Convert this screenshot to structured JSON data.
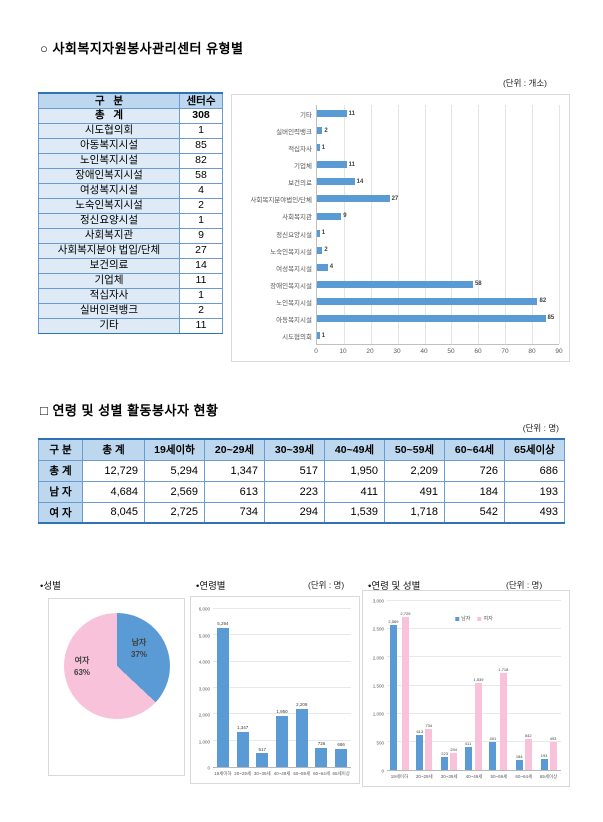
{
  "colors": {
    "accent_blue": "#5b9bd5",
    "pink": "#f8c3da",
    "table_header_bg": "#bdd7ee",
    "table_label_bg": "#deebf7",
    "table_border": "#2e74b5"
  },
  "section1": {
    "title": "○ 사회복지자원봉사관리센터 유형별",
    "unit": "(단위 : 개소)",
    "table": {
      "headers": [
        "구   분",
        "센터수"
      ],
      "rows": [
        [
          "총   계",
          "308"
        ],
        [
          "시도협의회",
          "1"
        ],
        [
          "아동복지시설",
          "85"
        ],
        [
          "노인복지시설",
          "82"
        ],
        [
          "장애인복지시설",
          "58"
        ],
        [
          "여성복지시설",
          "4"
        ],
        [
          "노숙인복지시설",
          "2"
        ],
        [
          "정신요양시설",
          "1"
        ],
        [
          "사회복지관",
          "9"
        ],
        [
          "사회복지분야 법입/단체",
          "27"
        ],
        [
          "보건의료",
          "14"
        ],
        [
          "기업체",
          "11"
        ],
        [
          "적십자사",
          "1"
        ],
        [
          "실버인력뱅크",
          "2"
        ],
        [
          "기타",
          "11"
        ]
      ]
    }
  },
  "section2": {
    "title": "□ 연령 및 성별 활동봉사자 현황",
    "unit": "(단위 : 명)",
    "table": {
      "headers": [
        "구 분",
        "총 계",
        "19세이하",
        "20~29세",
        "30~39세",
        "40~49세",
        "50~59세",
        "60~64세",
        "65세이상"
      ],
      "rows": [
        [
          "총 계",
          "12,729",
          "5,294",
          "1,347",
          "517",
          "1,950",
          "2,209",
          "726",
          "686"
        ],
        [
          "남 자",
          "4,684",
          "2,569",
          "613",
          "223",
          "411",
          "491",
          "184",
          "193"
        ],
        [
          "여 자",
          "8,045",
          "2,725",
          "734",
          "294",
          "1,539",
          "1,718",
          "542",
          "493"
        ]
      ]
    }
  },
  "mini_sections": {
    "gender_label": "•성별",
    "age_label": "•연령별",
    "age_unit": "(단위 : 명)",
    "age_gender_label": "•연령 및 성별",
    "age_gender_unit": "(단위 : 명)"
  },
  "chart_data": [
    {
      "id": "center_type_bar",
      "type": "bar",
      "orientation": "horizontal",
      "categories": [
        "기타",
        "실버인력뱅크",
        "적십자사",
        "기업체",
        "보건의료",
        "사회복지분야법인/단체",
        "사회복지관",
        "정신요양시설",
        "노숙인복지시설",
        "여성복지시설",
        "장애인복지시설",
        "노인복지시설",
        "아동복지시설",
        "시도협의회"
      ],
      "values": [
        11,
        2,
        1,
        11,
        14,
        27,
        9,
        1,
        2,
        4,
        58,
        82,
        85,
        1
      ],
      "xlim": [
        0,
        90
      ],
      "xtick_step": 10,
      "bar_color": "#5b9bd5",
      "grid": true,
      "legend": "none"
    },
    {
      "id": "gender_pie",
      "type": "pie",
      "title": "•성별",
      "labels": [
        "남자",
        "여자"
      ],
      "values": [
        37,
        63
      ],
      "value_labels": [
        "37%",
        "63%"
      ],
      "colors": [
        "#5b9bd5",
        "#f8c3da"
      ]
    },
    {
      "id": "age_bar",
      "type": "bar",
      "title": "•연령별",
      "unit": "(단위 : 명)",
      "categories": [
        "19세이하",
        "20~29세",
        "30~39세",
        "40~49세",
        "50~59세",
        "60~64세",
        "65세이상"
      ],
      "values": [
        5294,
        1347,
        517,
        1950,
        2209,
        726,
        686
      ],
      "ylim": [
        0,
        6000
      ],
      "ytick_step": 1000,
      "bar_color": "#5b9bd5",
      "grid": true,
      "legend": "none"
    },
    {
      "id": "age_gender_bar",
      "type": "bar",
      "title": "•연령 및 성별",
      "unit": "(단위 : 명)",
      "categories": [
        "19세이하",
        "20~29세",
        "30~39세",
        "40~49세",
        "50~59세",
        "60~64세",
        "65세이상"
      ],
      "series": [
        {
          "name": "남자",
          "color": "#5b9bd5",
          "values": [
            2569,
            613,
            223,
            411,
            491,
            184,
            193
          ]
        },
        {
          "name": "여자",
          "color": "#f8c3da",
          "values": [
            2725,
            734,
            294,
            1539,
            1718,
            542,
            493
          ]
        }
      ],
      "ylim": [
        0,
        3000
      ],
      "ytick_step": 500,
      "grid": true,
      "legend": "top"
    }
  ]
}
